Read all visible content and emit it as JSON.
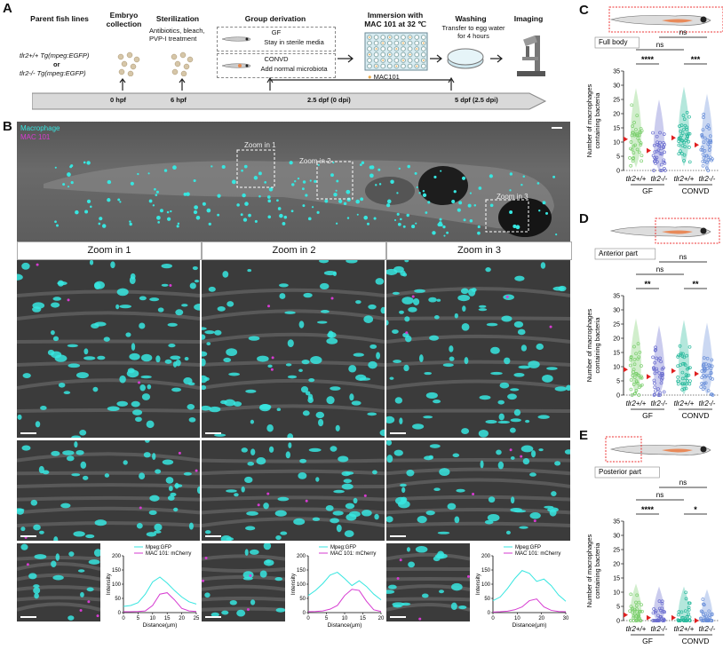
{
  "panels": {
    "A": "A",
    "B": "B",
    "C": "C",
    "D": "D",
    "E": "E"
  },
  "panelA": {
    "parent_title": "Parent fish lines",
    "line1": "tlr2+/+ Tg(mpeg:EGFP)",
    "or": "or",
    "line2": "tlr2-/- Tg(mpeg:EGFP)",
    "embryo": "Embryo collection",
    "sterilization": "Sterilization",
    "steril_desc": "Antibiotics, bleach, PVP-I treatment",
    "group": "Group derivation",
    "gf_label": "GF",
    "gf_desc": "Stay in sterile media",
    "convd_label": "CONVD",
    "convd_desc": "Add normal microbiota",
    "immersion": "Immersion with MAC 101 at 32 ℃",
    "mac_legend": "MAC101",
    "washing": "Washing",
    "wash_desc": "Transfer to egg water for 4 hours",
    "imaging": "Imaging",
    "t0": "0 hpf",
    "t1": "6 hpf",
    "t2": "2.5 dpf (0 dpi)",
    "t3": "5 dpf (2.5 dpi)"
  },
  "panelB": {
    "legend_mac": "Macrophage",
    "legend_mac101": "MAC 101",
    "zoom1": "Zoom in 1",
    "zoom2": "Zoom in 2",
    "zoom3": "Zoom in 3",
    "zoom_labels": [
      "Zoom in 1",
      "Zoom in 2",
      "Zoom in 3"
    ],
    "profile_legend": [
      "Mpeg:GFP",
      "MAC 101: mCherry"
    ],
    "profile_xlabel": "Distance(μm)",
    "profile_ylabel": "Intensity",
    "colors": {
      "gfp": "#37e6e0",
      "mcherry": "#d63bd1"
    }
  },
  "chart_data": [
    {
      "type": "line",
      "x": [
        0,
        2.5,
        5,
        7.5,
        10,
        12.5,
        15,
        17.5,
        20,
        22.5,
        25
      ],
      "series": [
        {
          "name": "Mpeg:GFP",
          "values": [
            22,
            25,
            35,
            65,
            108,
            125,
            104,
            78,
            55,
            38,
            30
          ]
        },
        {
          "name": "MAC 101: mCherry",
          "values": [
            3,
            3,
            4,
            6,
            25,
            65,
            70,
            45,
            15,
            6,
            4
          ]
        }
      ],
      "xticks": [
        0,
        5,
        10,
        15,
        20,
        25
      ],
      "yticks": [
        0,
        50,
        100,
        150,
        200
      ],
      "ylim": [
        0,
        200
      ],
      "xlabel": "Distance(μm)",
      "ylabel": "Intensity"
    },
    {
      "type": "line",
      "x": [
        0,
        2,
        4,
        6,
        8,
        10,
        12,
        14,
        16,
        18,
        20
      ],
      "series": [
        {
          "name": "Mpeg:GFP",
          "values": [
            60,
            78,
            102,
            132,
            142,
            120,
            95,
            112,
            92,
            65,
            45
          ]
        },
        {
          "name": "MAC 101: mCherry",
          "values": [
            3,
            4,
            6,
            12,
            25,
            60,
            82,
            78,
            40,
            10,
            4
          ]
        }
      ],
      "xticks": [
        0,
        5,
        10,
        15,
        20
      ],
      "yticks": [
        0,
        50,
        100,
        150,
        200
      ],
      "ylim": [
        0,
        200
      ],
      "xlabel": "Distance(μm)",
      "ylabel": "Intensity"
    },
    {
      "type": "line",
      "x": [
        0,
        3,
        6,
        9,
        12,
        15,
        18,
        21,
        24,
        27,
        30
      ],
      "series": [
        {
          "name": "Mpeg:GFP",
          "values": [
            42,
            55,
            85,
            120,
            148,
            138,
            110,
            118,
            95,
            62,
            40
          ]
        },
        {
          "name": "MAC 101: mCherry",
          "values": [
            2,
            3,
            5,
            10,
            20,
            42,
            48,
            20,
            8,
            4,
            3
          ]
        }
      ],
      "xticks": [
        0,
        10,
        20,
        30
      ],
      "yticks": [
        0,
        50,
        100,
        150,
        200
      ],
      "ylim": [
        0,
        200
      ],
      "xlabel": "Distance(μm)",
      "ylabel": "Intensity"
    },
    {
      "type": "scatter",
      "subtitle": "Full body",
      "ylabel": "Number of macrophages containing bacteria",
      "ylim": [
        0,
        35
      ],
      "yticks": [
        0,
        5,
        10,
        15,
        20,
        25,
        30,
        35
      ],
      "categories": [
        "tlr2+/+",
        "tlr2-/-",
        "tlr2+/+",
        "tlr2-/-"
      ],
      "groups": [
        "GF",
        "CONVD"
      ],
      "medians": [
        11,
        7,
        11.5,
        9
      ],
      "colors": [
        "#7ccf6e",
        "#6b6ecf",
        "#28b99c",
        "#6a8fd9"
      ],
      "sig": {
        "wt_vs_ko_gf": "****",
        "wt_vs_ko_convd": "***",
        "gf_vs_convd_wt": "ns",
        "gf_vs_convd_ko": "ns"
      }
    },
    {
      "type": "scatter",
      "subtitle": "Anterior part",
      "ylabel": "Number of macrophages containing bacteria",
      "ylim": [
        0,
        35
      ],
      "yticks": [
        0,
        5,
        10,
        15,
        20,
        25,
        30,
        35
      ],
      "categories": [
        "tlr2+/+",
        "tlr2-/-",
        "tlr2+/+",
        "tlr2-/-"
      ],
      "groups": [
        "GF",
        "CONVD"
      ],
      "medians": [
        9,
        6.5,
        8.5,
        7.5
      ],
      "colors": [
        "#7ccf6e",
        "#6b6ecf",
        "#28b99c",
        "#6a8fd9"
      ],
      "sig": {
        "wt_vs_ko_gf": "**",
        "wt_vs_ko_convd": "**",
        "gf_vs_convd_wt": "ns",
        "gf_vs_convd_ko": "ns"
      }
    },
    {
      "type": "scatter",
      "subtitle": "Posterior part",
      "ylabel": "Number of macrophages containing bacteria",
      "ylim": [
        0,
        35
      ],
      "yticks": [
        0,
        5,
        10,
        15,
        20,
        25,
        30,
        35
      ],
      "categories": [
        "tlr2+/+",
        "tlr2-/-",
        "tlr2+/+",
        "tlr2-/-"
      ],
      "groups": [
        "GF",
        "CONVD"
      ],
      "medians": [
        2,
        1,
        1,
        0
      ],
      "colors": [
        "#7ccf6e",
        "#6b6ecf",
        "#28b99c",
        "#6a8fd9"
      ],
      "sig": {
        "wt_vs_ko_gf": "****",
        "wt_vs_ko_convd": "*",
        "gf_vs_convd_wt": "ns",
        "gf_vs_convd_ko": "ns"
      }
    }
  ]
}
